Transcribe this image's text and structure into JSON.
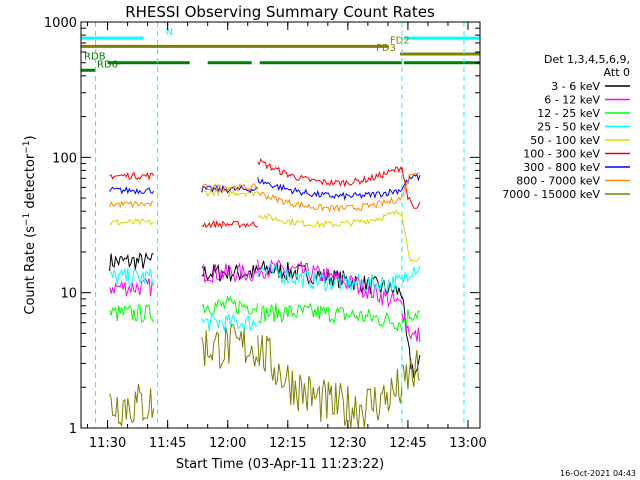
{
  "chart_data": {
    "type": "line",
    "title": "RHESSI Observing Summary Count Rates",
    "xlabel": "Start Time (03-Apr-11 11:23:22)",
    "ylabel": "Count Rate (s⁻¹ detector⁻¹)",
    "ylabel_main": "Count Rate (s",
    "ylabel_sup1": "−1",
    "ylabel_mid": " detector",
    "ylabel_sup2": "−1",
    "ylabel_end": ")",
    "y_scale": "log",
    "ylim": [
      1,
      1000
    ],
    "xlim": [
      "11:23:22",
      "13:03:00"
    ],
    "x_ticks": [
      "11:30",
      "11:45",
      "12:00",
      "12:15",
      "12:30",
      "12:45",
      "13:00"
    ],
    "y_ticks": [
      "1",
      "10",
      "100",
      "1000"
    ],
    "grid": false,
    "legend_position": "right",
    "legend_header": [
      "Det 1,3,4,5,6,9,",
      "Att 0"
    ],
    "timestamp": "16-Oct-2021 04:43",
    "segments": [
      {
        "start": "11:30:30",
        "end": "11:41:30"
      },
      {
        "start": "11:53:30",
        "end": "12:07:30"
      },
      {
        "start": "12:07:30",
        "end": "12:43:30"
      },
      {
        "start": "12:43:30",
        "end": "12:48:00"
      }
    ],
    "series": [
      {
        "name": "3 - 6 keV",
        "color": "#000000",
        "values": [
          17,
          14,
          15,
          13,
          10,
          3
        ]
      },
      {
        "name": "6 - 12 keV",
        "color": "#ff00ff",
        "values": [
          11,
          14,
          15,
          13,
          8,
          5
        ]
      },
      {
        "name": "12 - 25 keV",
        "color": "#00ff00",
        "values": [
          7,
          8,
          7,
          7,
          6,
          7
        ]
      },
      {
        "name": "25 - 50 keV",
        "color": "#00ffff",
        "values": [
          13,
          6,
          15,
          12,
          12,
          15
        ]
      },
      {
        "name": "50 - 100 keV",
        "color": "#d8d800",
        "values": [
          33,
          55,
          38,
          32,
          40,
          18
        ]
      },
      {
        "name": "100 - 300 keV",
        "color": "#ff0000",
        "values": [
          73,
          32,
          95,
          65,
          85,
          45
        ]
      },
      {
        "name": "300 - 800 keV",
        "color": "#0000ff",
        "values": [
          57,
          58,
          68,
          52,
          58,
          70
        ]
      },
      {
        "name": "800 - 7000 keV",
        "color": "#ff8c00",
        "values": [
          45,
          60,
          55,
          42,
          50,
          75
        ]
      },
      {
        "name": "7000 - 15000 keV",
        "color": "#808000",
        "values": [
          1.5,
          4,
          4,
          1.5,
          2,
          2.5
        ]
      }
    ],
    "flags": [
      {
        "name": "N",
        "color": "#00ffff",
        "intervals": [
          [
            "11:23:22",
            "11:39:00"
          ],
          [
            "12:44:00",
            "13:03:00"
          ]
        ],
        "level": 760
      },
      {
        "name": "FD2",
        "color": "#808000",
        "intervals": [
          [
            "11:23:22",
            "12:40:00"
          ]
        ],
        "level": 660
      },
      {
        "name": "FD3",
        "color": "#808000",
        "intervals": [
          [
            "12:43:00",
            "13:03:00"
          ]
        ],
        "level": 580
      },
      {
        "name": "RDB",
        "color": "#008000",
        "intervals": [
          [
            "11:30:00",
            "11:50:30"
          ],
          [
            "11:55:00",
            "12:06:00"
          ],
          [
            "12:08:00",
            "12:43:30"
          ],
          [
            "12:44:00",
            "13:03:00"
          ]
        ],
        "level": 500
      },
      {
        "name": "RD6",
        "color": "#008000",
        "intervals": [
          [
            "11:23:22",
            "11:27:00"
          ]
        ],
        "level": 440
      }
    ],
    "vertical_markers": [
      {
        "time": "11:27:00",
        "color": "#00ffff"
      },
      {
        "time": "11:42:30",
        "color": "#00ffff"
      },
      {
        "time": "12:43:30",
        "color": "#00ffff"
      },
      {
        "time": "12:59:00",
        "color": "#00ffff"
      }
    ]
  }
}
